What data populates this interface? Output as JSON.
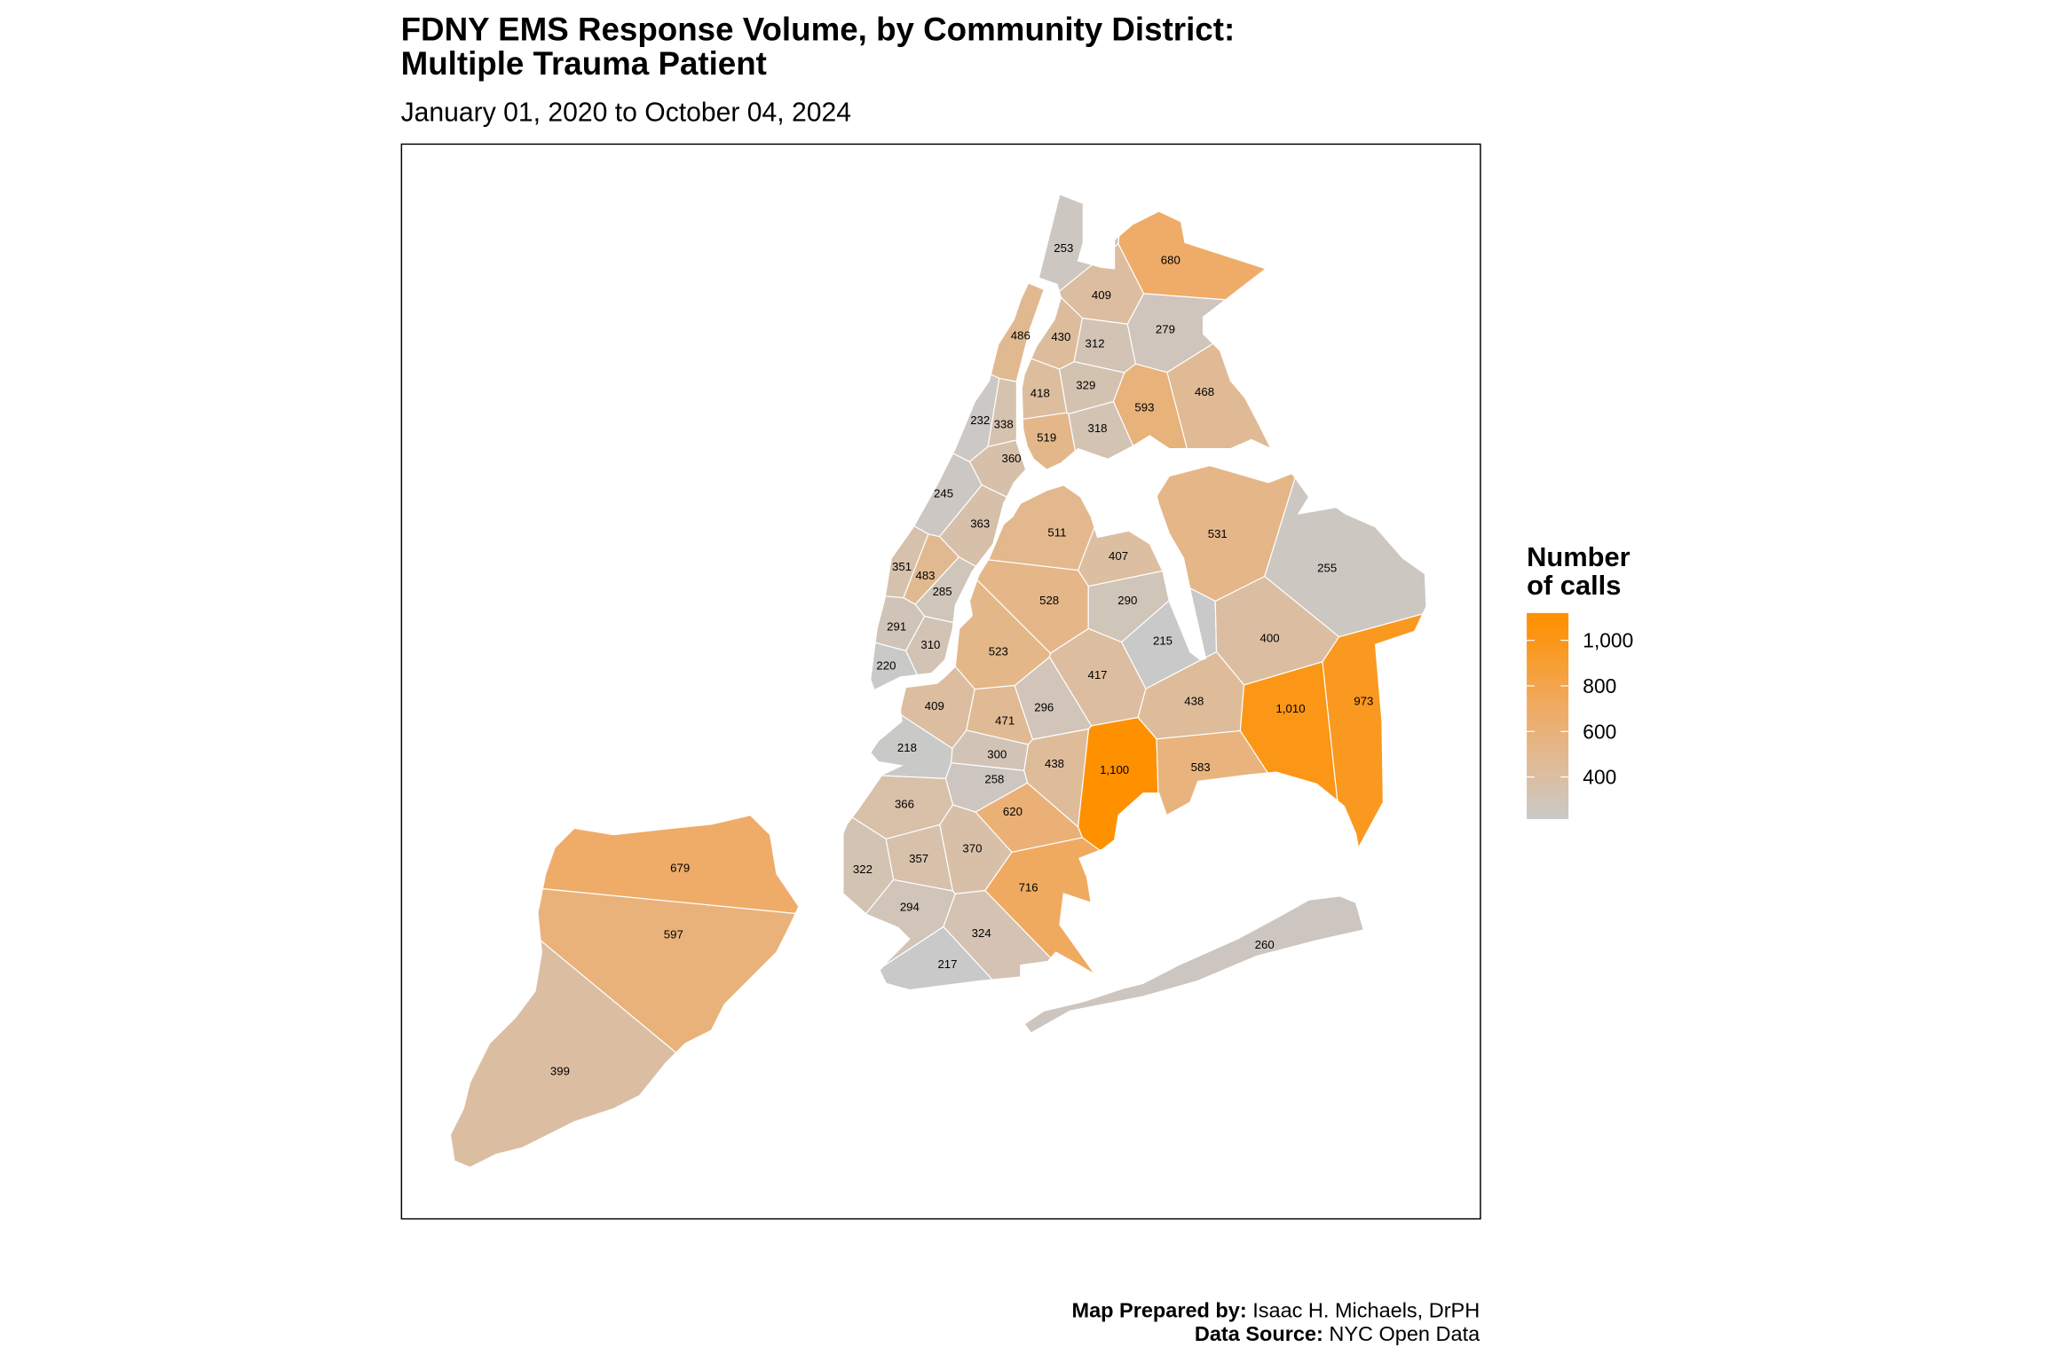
{
  "title_line1": "FDNY EMS Response Volume, by Community District:",
  "title_line2": "Multiple Trauma Patient",
  "subtitle": "January 01, 2020 to October 04, 2024",
  "legend": {
    "title_line1": "Number",
    "title_line2": "of calls",
    "ticks": [
      {
        "value": 1000,
        "label": "1,000"
      },
      {
        "value": 800,
        "label": "800"
      },
      {
        "value": 600,
        "label": "600"
      },
      {
        "value": 400,
        "label": "400"
      }
    ],
    "range": [
      215,
      1120
    ],
    "color_scale": [
      [
        215,
        "#C9C9C9"
      ],
      [
        400,
        "#DBBEA2"
      ],
      [
        520,
        "#E4B78A"
      ],
      [
        700,
        "#EFAB64"
      ],
      [
        1100,
        "#FF9000"
      ]
    ]
  },
  "footer": {
    "prepared_label": "Map Prepared by:",
    "prepared_value": " Isaac H. Michaels, DrPH",
    "source_label": "Data Source:",
    "source_value": " NYC Open Data"
  },
  "map_data": {
    "type": "choropleth",
    "districts": [
      {
        "label": "253",
        "value": 253
      },
      {
        "label": "680",
        "value": 680
      },
      {
        "label": "409",
        "value": 409
      },
      {
        "label": "430",
        "value": 430
      },
      {
        "label": "312",
        "value": 312
      },
      {
        "label": "279",
        "value": 279
      },
      {
        "label": "418",
        "value": 418
      },
      {
        "label": "329",
        "value": 329
      },
      {
        "label": "593",
        "value": 593
      },
      {
        "label": "468",
        "value": 468
      },
      {
        "label": "519",
        "value": 519
      },
      {
        "label": "318",
        "value": 318
      },
      {
        "label": "486",
        "value": 486
      },
      {
        "label": "232",
        "value": 232
      },
      {
        "label": "338",
        "value": 338
      },
      {
        "label": "360",
        "value": 360
      },
      {
        "label": "245",
        "value": 245
      },
      {
        "label": "363",
        "value": 363
      },
      {
        "label": "351",
        "value": 351
      },
      {
        "label": "483",
        "value": 483
      },
      {
        "label": "285",
        "value": 285
      },
      {
        "label": "291",
        "value": 291
      },
      {
        "label": "310",
        "value": 310
      },
      {
        "label": "220",
        "value": 220
      },
      {
        "label": "511",
        "value": 511
      },
      {
        "label": "531",
        "value": 531
      },
      {
        "label": "407",
        "value": 407
      },
      {
        "label": "255",
        "value": 255
      },
      {
        "label": "528",
        "value": 528
      },
      {
        "label": "290",
        "value": 290
      },
      {
        "label": "215",
        "value": 215
      },
      {
        "label": "400",
        "value": 400
      },
      {
        "label": "523",
        "value": 523
      },
      {
        "label": "417",
        "value": 417
      },
      {
        "label": "438",
        "value": 438
      },
      {
        "label": "973",
        "value": 973
      },
      {
        "label": "1,010",
        "value": 1010
      },
      {
        "label": "409",
        "value": 409
      },
      {
        "label": "471",
        "value": 471
      },
      {
        "label": "296",
        "value": 296
      },
      {
        "label": "218",
        "value": 218
      },
      {
        "label": "300",
        "value": 300
      },
      {
        "label": "438",
        "value": 438
      },
      {
        "label": "1,100",
        "value": 1100
      },
      {
        "label": "583",
        "value": 583
      },
      {
        "label": "258",
        "value": 258
      },
      {
        "label": "366",
        "value": 366
      },
      {
        "label": "620",
        "value": 620
      },
      {
        "label": "370",
        "value": 370
      },
      {
        "label": "357",
        "value": 357
      },
      {
        "label": "322",
        "value": 322
      },
      {
        "label": "716",
        "value": 716
      },
      {
        "label": "294",
        "value": 294
      },
      {
        "label": "324",
        "value": 324
      },
      {
        "label": "217",
        "value": 217
      },
      {
        "label": "260",
        "value": 260
      },
      {
        "label": "679",
        "value": 679
      },
      {
        "label": "597",
        "value": 597
      },
      {
        "label": "399",
        "value": 399
      }
    ]
  }
}
